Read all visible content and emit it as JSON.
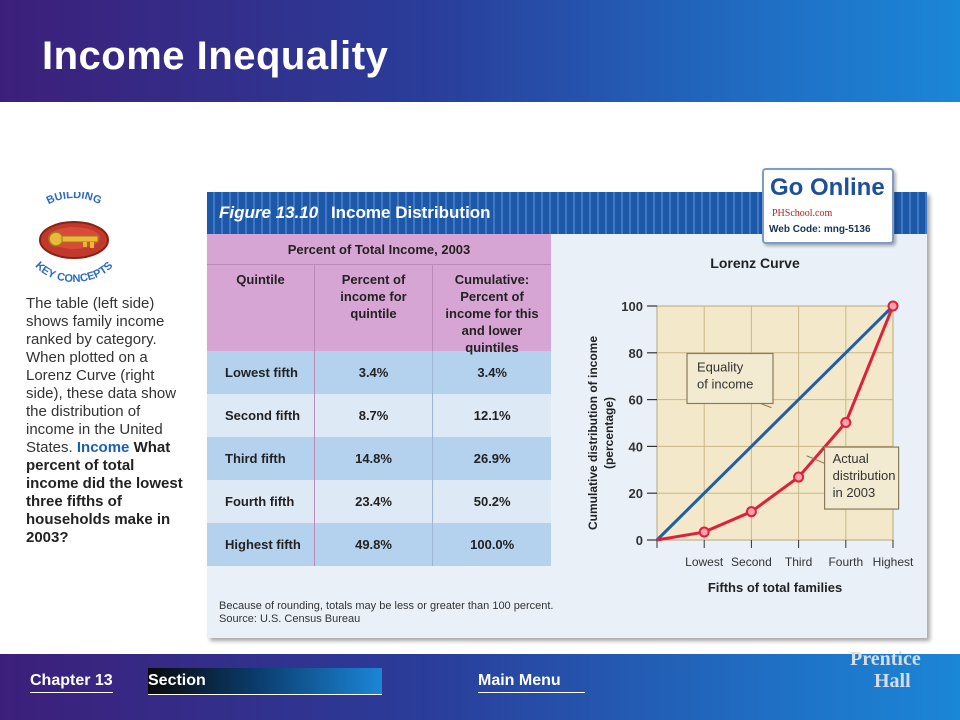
{
  "slide": {
    "title": "Income Inequality"
  },
  "badge": {
    "line1": "BUILDING",
    "line2": "KEY CONCEPTS",
    "icon": "key-icon"
  },
  "side_text": {
    "body": "The table (left side) shows family income ranked by category. When plotted on a Lorenz Curve (right side), these data show the distribution of income in the United States.",
    "label": "Income",
    "question": "What percent of total income did the lowest three fifths of households make in 2003?"
  },
  "figure": {
    "label": "Figure 13.10",
    "title": "Income Distribution",
    "footnote_1": "Because of rounding, totals may be less or greater than 100 percent.",
    "footnote_2": "Source: U.S. Census Bureau"
  },
  "table": {
    "title": "Percent of Total Income, 2003",
    "headers": [
      "Quintile",
      "Percent of income for quintile",
      "Cumulative: Percent of income for this and lower quintiles"
    ],
    "rows": [
      [
        "Lowest fifth",
        "3.4%",
        "3.4%"
      ],
      [
        "Second fifth",
        "8.7%",
        "12.1%"
      ],
      [
        "Third fifth",
        "14.8%",
        "26.9%"
      ],
      [
        "Fourth fifth",
        "23.4%",
        "50.2%"
      ],
      [
        "Highest fifth",
        "49.8%",
        "100.0%"
      ]
    ]
  },
  "chart_data": {
    "type": "line",
    "title": "Lorenz Curve",
    "xlabel": "Fifths of total families",
    "ylabel": "Cumulative distribution of income (percentage)",
    "categories": [
      "",
      "Lowest",
      "Second",
      "Third",
      "Fourth",
      "Highest"
    ],
    "ylim": [
      0,
      100
    ],
    "yticks": [
      0,
      20,
      40,
      60,
      80,
      100
    ],
    "grid": true,
    "series": [
      {
        "name": "Equality of income",
        "values": [
          0,
          20,
          40,
          60,
          80,
          100
        ],
        "color": "#1f5fa8"
      },
      {
        "name": "Actual distribution in 2003",
        "values": [
          0,
          3.4,
          12.1,
          26.9,
          50.2,
          100
        ],
        "color": "#e0203a"
      }
    ],
    "annotations": [
      "Equality of income",
      "Actual distribution in 2003"
    ]
  },
  "go_online": {
    "logo": "Go Online",
    "site": "PHSchool.com",
    "code": "Web Code: mng-5136"
  },
  "footer": {
    "chapter": "Chapter 13",
    "section": "Section",
    "main_menu": "Main Menu",
    "publisher_1": "Prentice",
    "publisher_2": "Hall"
  }
}
